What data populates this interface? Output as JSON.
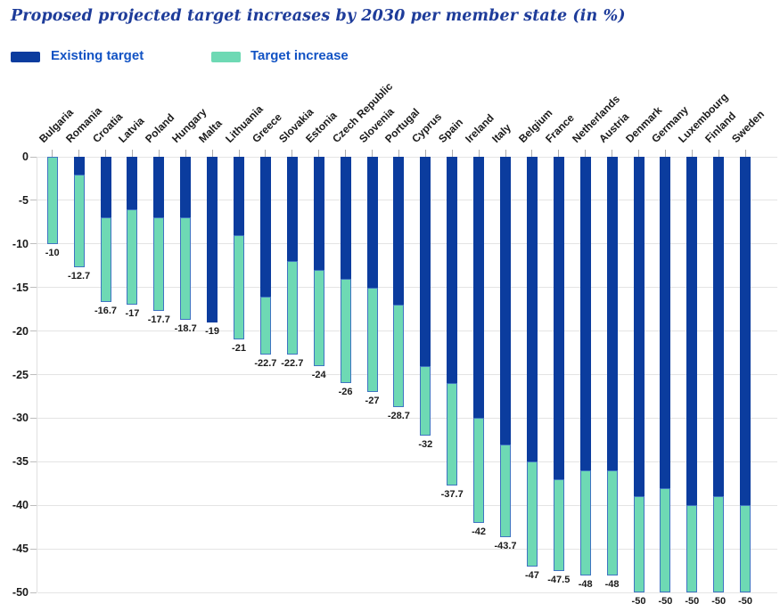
{
  "header": {
    "title": "Proposed projected target increases by 2030 per member state (in %)",
    "title_color": "#1e3c9a"
  },
  "legend": {
    "text_color": "#1253c4",
    "items": [
      {
        "label": "Existing target",
        "color": "#0b3c9e"
      },
      {
        "label": "Target increase",
        "color": "#6ed9b4"
      }
    ]
  },
  "chart_data": {
    "type": "bar",
    "stacked": true,
    "orientation": "vertical",
    "title": "Proposed projected target increases by 2030 per member state (in %)",
    "unit": "%",
    "ylim": [
      -50,
      0
    ],
    "grid": true,
    "legend_position": "top-left",
    "ytick_labels": [
      "0",
      "-5",
      "-10",
      "-15",
      "-20",
      "-25",
      "-30",
      "-35",
      "-40",
      "-45",
      "-50"
    ],
    "series_names": [
      "Existing target",
      "Target increase"
    ],
    "colors": {
      "existing_target": "#0b3c9e",
      "target_increase": "#6ed9b4",
      "target_increase_border": "#3f74c2"
    },
    "bars": [
      {
        "country": "Bulgaria",
        "existing_target": 0,
        "proposed_total": -10,
        "label": "-10"
      },
      {
        "country": "Romania",
        "existing_target": -2,
        "proposed_total": -12.7,
        "label": "-12.7"
      },
      {
        "country": "Croatia",
        "existing_target": -7,
        "proposed_total": -16.7,
        "label": "-16.7"
      },
      {
        "country": "Latvia",
        "existing_target": -6,
        "proposed_total": -17,
        "label": "-17"
      },
      {
        "country": "Poland",
        "existing_target": -7,
        "proposed_total": -17.7,
        "label": "-17.7"
      },
      {
        "country": "Hungary",
        "existing_target": -7,
        "proposed_total": -18.7,
        "label": "-18.7"
      },
      {
        "country": "Malta",
        "existing_target": -19,
        "proposed_total": -19,
        "label": "-19"
      },
      {
        "country": "Lithuania",
        "existing_target": -9,
        "proposed_total": -21,
        "label": "-21"
      },
      {
        "country": "Greece",
        "existing_target": -16,
        "proposed_total": -22.7,
        "label": "-22.7"
      },
      {
        "country": "Slovakia",
        "existing_target": -12,
        "proposed_total": -22.7,
        "label": "-22.7"
      },
      {
        "country": "Estonia",
        "existing_target": -13,
        "proposed_total": -24,
        "label": "-24"
      },
      {
        "country": "Czech Republic",
        "existing_target": -14,
        "proposed_total": -26,
        "label": "-26"
      },
      {
        "country": "Slovenia",
        "existing_target": -15,
        "proposed_total": -27,
        "label": "-27"
      },
      {
        "country": "Portugal",
        "existing_target": -17,
        "proposed_total": -28.7,
        "label": "-28.7"
      },
      {
        "country": "Cyprus",
        "existing_target": -24,
        "proposed_total": -32,
        "label": "-32"
      },
      {
        "country": "Spain",
        "existing_target": -26,
        "proposed_total": -37.7,
        "label": "-37.7"
      },
      {
        "country": "Ireland",
        "existing_target": -30,
        "proposed_total": -42,
        "label": "-42"
      },
      {
        "country": "Italy",
        "existing_target": -33,
        "proposed_total": -43.7,
        "label": "-43.7"
      },
      {
        "country": "Belgium",
        "existing_target": -35,
        "proposed_total": -47,
        "label": "-47"
      },
      {
        "country": "France",
        "existing_target": -37,
        "proposed_total": -47.5,
        "label": "-47.5"
      },
      {
        "country": "Netherlands",
        "existing_target": -36,
        "proposed_total": -48,
        "label": "-48"
      },
      {
        "country": "Austria",
        "existing_target": -36,
        "proposed_total": -48,
        "label": "-48"
      },
      {
        "country": "Denmark",
        "existing_target": -39,
        "proposed_total": -50,
        "label": "-50"
      },
      {
        "country": "Germany",
        "existing_target": -38,
        "proposed_total": -50,
        "label": "-50"
      },
      {
        "country": "Luxembourg",
        "existing_target": -40,
        "proposed_total": -50,
        "label": "-50"
      },
      {
        "country": "Finland",
        "existing_target": -39,
        "proposed_total": -50,
        "label": "-50"
      },
      {
        "country": "Sweden",
        "existing_target": -40,
        "proposed_total": -50,
        "label": "-50"
      }
    ]
  }
}
